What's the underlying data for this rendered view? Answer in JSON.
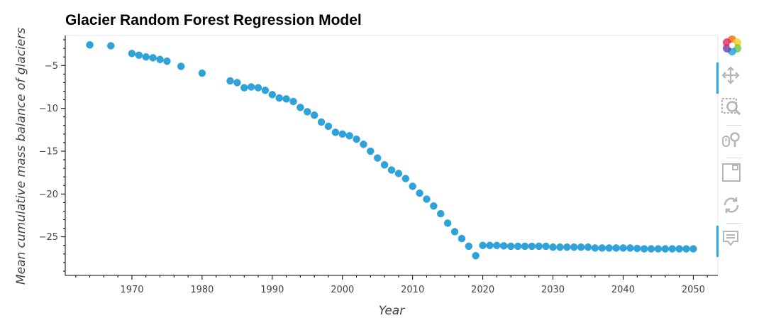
{
  "chart_data": {
    "type": "scatter",
    "title": "Glacier Random Forest Regression Model",
    "xlabel": "Year",
    "ylabel": "Mean cumulative mass balance of glaciers",
    "xlim": [
      1960.5,
      2053.5
    ],
    "ylim": [
      -29.5,
      -1.5
    ],
    "xticks": [
      1970,
      1980,
      1990,
      2000,
      2010,
      2020,
      2030,
      2040,
      2050
    ],
    "yticks": [
      -5,
      -10,
      -15,
      -20,
      -25
    ],
    "grid": false,
    "marker_color": "#30a2da",
    "x": [
      1964,
      1967,
      1970,
      1971,
      1972,
      1973,
      1974,
      1975,
      1977,
      1980,
      1984,
      1985,
      1986,
      1987,
      1988,
      1989,
      1990,
      1991,
      1992,
      1993,
      1994,
      1995,
      1996,
      1997,
      1998,
      1999,
      2000,
      2001,
      2002,
      2003,
      2004,
      2005,
      2006,
      2007,
      2008,
      2009,
      2010,
      2011,
      2012,
      2013,
      2014,
      2015,
      2016,
      2017,
      2018,
      2019,
      2020,
      2021,
      2022,
      2023,
      2024,
      2025,
      2026,
      2027,
      2028,
      2029,
      2030,
      2031,
      2032,
      2033,
      2034,
      2035,
      2036,
      2037,
      2038,
      2039,
      2040,
      2041,
      2042,
      2043,
      2044,
      2045,
      2046,
      2047,
      2048,
      2049,
      2050
    ],
    "y": [
      -2.6,
      -2.7,
      -3.6,
      -3.8,
      -4.0,
      -4.1,
      -4.3,
      -4.5,
      -5.1,
      -5.9,
      -6.8,
      -7.0,
      -7.6,
      -7.5,
      -7.6,
      -7.9,
      -8.4,
      -8.8,
      -8.9,
      -9.2,
      -9.9,
      -10.4,
      -10.8,
      -11.6,
      -12.1,
      -12.8,
      -13.0,
      -13.2,
      -13.6,
      -14.2,
      -15.0,
      -15.8,
      -16.6,
      -17.2,
      -17.6,
      -18.2,
      -19.1,
      -19.9,
      -20.6,
      -21.4,
      -22.3,
      -23.4,
      -24.4,
      -25.2,
      -26.1,
      -27.2,
      -26.0,
      -26.0,
      -26.0,
      -26.05,
      -26.1,
      -26.1,
      -26.1,
      -26.1,
      -26.1,
      -26.1,
      -26.2,
      -26.2,
      -26.2,
      -26.2,
      -26.2,
      -26.2,
      -26.3,
      -26.3,
      -26.3,
      -26.3,
      -26.3,
      -26.3,
      -26.35,
      -26.4,
      -26.4,
      -26.4,
      -26.4,
      -26.4,
      -26.4,
      -26.4,
      -26.4
    ]
  },
  "toolbar": {
    "logo_icon": "bokeh-logo-icon",
    "tools": [
      "pan-icon",
      "box-zoom-icon",
      "wheel-zoom-icon",
      "save-icon",
      "reset-icon",
      "hover-icon"
    ]
  }
}
